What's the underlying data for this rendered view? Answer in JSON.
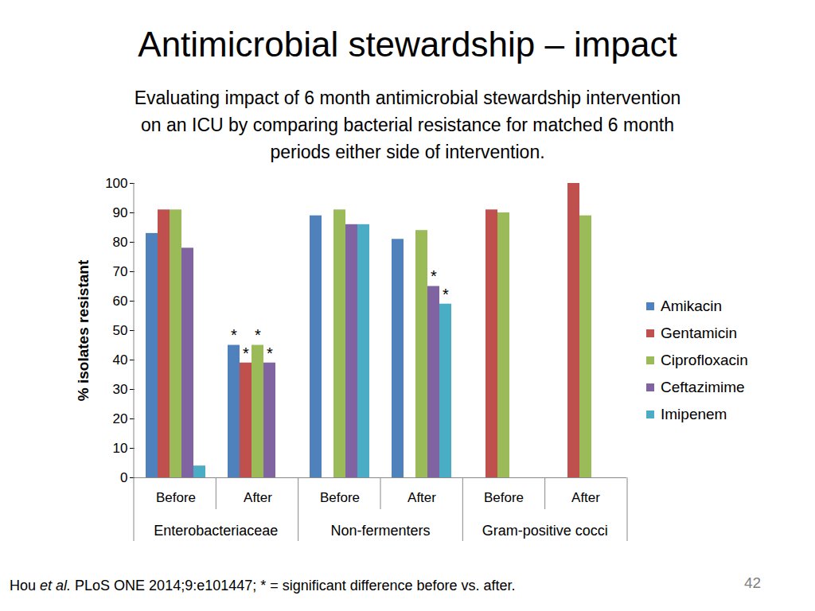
{
  "chart_data": {
    "type": "bar",
    "title": "Antimicrobial stewardship – impact",
    "subtitle": [
      "Evaluating impact of 6 month antimicrobial stewardship intervention",
      "on an ICU by comparing bacterial resistance for matched 6 month",
      "periods either side of intervention."
    ],
    "y_label": "% isolates resistant",
    "categories": [
      "Before",
      "After",
      "Before",
      "After",
      "Before",
      "After"
    ],
    "group_labels": [
      "Enterobacteriaceae",
      "Non-fermenters",
      "Gram-positive cocci"
    ],
    "series": [
      {
        "name": "Amikacin",
        "color": "#4f81bd",
        "values": [
          83,
          45,
          89,
          81,
          null,
          null
        ],
        "annotations": [
          null,
          "*",
          null,
          null,
          null,
          null
        ]
      },
      {
        "name": "Gentamicin",
        "color": "#c0504d",
        "values": [
          91,
          39,
          null,
          null,
          91,
          100
        ],
        "annotations": [
          null,
          "*",
          null,
          null,
          null,
          null
        ]
      },
      {
        "name": "Ciprofloxacin",
        "color": "#9bbb59",
        "values": [
          91,
          45,
          91,
          84,
          90,
          89
        ],
        "annotations": [
          null,
          "*",
          null,
          null,
          null,
          null
        ]
      },
      {
        "name": "Ceftazimime",
        "color": "#8064a2",
        "values": [
          78,
          39,
          86,
          65,
          null,
          null
        ],
        "annotations": [
          null,
          "*",
          null,
          "*",
          null,
          null
        ]
      },
      {
        "name": "Imipenem",
        "color": "#4bacc6",
        "values": [
          4,
          null,
          86,
          59,
          null,
          null
        ],
        "annotations": [
          null,
          null,
          null,
          "*",
          null,
          null
        ]
      }
    ],
    "ylim": [
      0,
      100
    ],
    "yticks": [
      0,
      10,
      20,
      30,
      40,
      50,
      60,
      70,
      80,
      90,
      100
    ],
    "grid": false,
    "legend": "right",
    "source": "Hou et al. PLoS ONE 2014;9:e101447; * = significant difference before vs. after.",
    "page_number": 42
  }
}
